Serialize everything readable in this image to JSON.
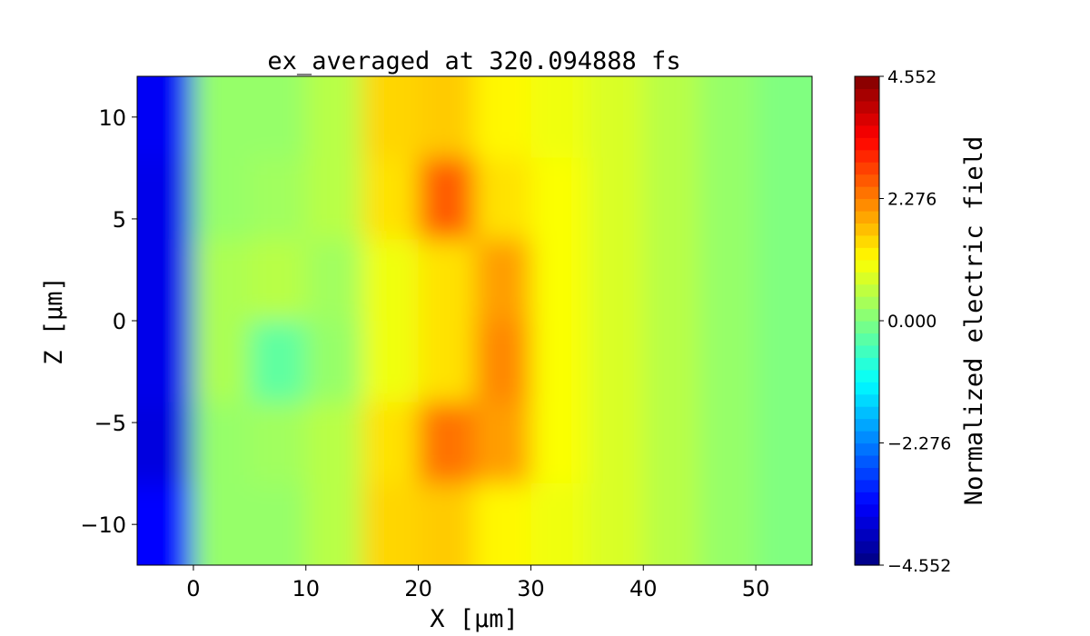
{
  "chart_data": {
    "type": "heatmap",
    "title": "ex_averaged at 320.094888 fs",
    "xlabel": "X [μm]",
    "ylabel": "Z [μm]",
    "xlim": [
      -5,
      55
    ],
    "ylim": [
      -12,
      12
    ],
    "xticks": [
      0,
      10,
      20,
      30,
      40,
      50
    ],
    "xtick_labels": [
      "0",
      "10",
      "20",
      "30",
      "40",
      "50"
    ],
    "yticks": [
      10,
      5,
      0,
      -5,
      -10
    ],
    "ytick_labels": [
      "10",
      "5",
      "0",
      "−5",
      "−10"
    ],
    "colormap": "jet",
    "colorbar": {
      "label": "Normalized electric field",
      "range": [
        -4.552,
        4.552
      ],
      "ticks": [
        4.552,
        2.276,
        0.0,
        -2.276,
        -4.552
      ],
      "tick_labels": [
        "4.552",
        "2.276",
        "0.000",
        "−2.276",
        "−4.552"
      ]
    },
    "grid": false,
    "x_centers": [
      -2.5,
      2.5,
      7.5,
      12.5,
      17.5,
      22.5,
      27.5,
      32.5,
      37.5,
      42.5,
      47.5,
      52.5
    ],
    "z_centers": [
      10,
      6,
      2,
      -2,
      -6,
      -10
    ],
    "values": [
      [
        -3.5,
        0.2,
        0.2,
        0.5,
        1.5,
        1.6,
        1.2,
        1.0,
        0.8,
        0.5,
        0.2,
        0.0
      ],
      [
        -3.6,
        0.2,
        0.3,
        0.5,
        1.4,
        2.6,
        1.4,
        1.1,
        0.8,
        0.5,
        0.2,
        0.0
      ],
      [
        -3.6,
        0.4,
        0.5,
        0.3,
        1.0,
        1.4,
        2.0,
        1.1,
        0.8,
        0.5,
        0.2,
        0.0
      ],
      [
        -3.6,
        0.4,
        -0.3,
        0.2,
        1.0,
        1.4,
        2.2,
        1.1,
        0.8,
        0.5,
        0.2,
        0.0
      ],
      [
        -3.7,
        0.2,
        0.3,
        0.5,
        1.4,
        2.4,
        2.0,
        1.1,
        0.8,
        0.5,
        0.2,
        0.0
      ],
      [
        -3.4,
        0.2,
        0.2,
        0.5,
        1.5,
        1.6,
        1.2,
        1.0,
        0.8,
        0.5,
        0.2,
        0.0
      ]
    ]
  }
}
